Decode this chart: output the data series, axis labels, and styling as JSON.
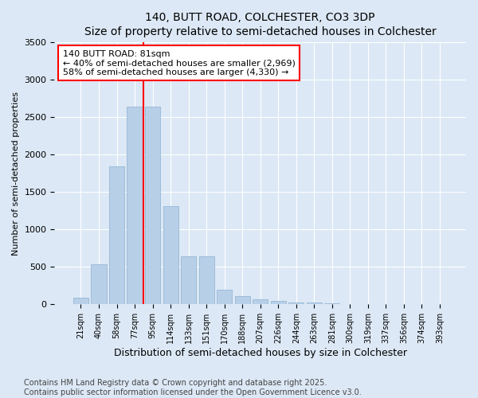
{
  "title": "140, BUTT ROAD, COLCHESTER, CO3 3DP",
  "subtitle": "Size of property relative to semi-detached houses in Colchester",
  "xlabel": "Distribution of semi-detached houses by size in Colchester",
  "ylabel": "Number of semi-detached properties",
  "categories": [
    "21sqm",
    "40sqm",
    "58sqm",
    "77sqm",
    "95sqm",
    "114sqm",
    "133sqm",
    "151sqm",
    "170sqm",
    "188sqm",
    "207sqm",
    "226sqm",
    "244sqm",
    "263sqm",
    "281sqm",
    "300sqm",
    "319sqm",
    "337sqm",
    "356sqm",
    "374sqm",
    "393sqm"
  ],
  "values": [
    90,
    530,
    1840,
    2640,
    2640,
    1310,
    640,
    640,
    200,
    110,
    70,
    50,
    30,
    20,
    10,
    8,
    5,
    3,
    2,
    1,
    1
  ],
  "bar_color": "#b8cfe8",
  "bar_edge_color": "#8ab0d0",
  "vline_color": "red",
  "vline_x_index": 3.5,
  "annotation_text": "140 BUTT ROAD: 81sqm\n← 40% of semi-detached houses are smaller (2,969)\n58% of semi-detached houses are larger (4,330) →",
  "annotation_box_color": "white",
  "annotation_edge_color": "red",
  "ylim": [
    0,
    3500
  ],
  "yticks": [
    0,
    500,
    1000,
    1500,
    2000,
    2500,
    3000,
    3500
  ],
  "footer": "Contains HM Land Registry data © Crown copyright and database right 2025.\nContains public sector information licensed under the Open Government Licence v3.0.",
  "bg_color": "#dce8f5",
  "plot_bg_color": "#dce8f5",
  "title_fontsize": 10,
  "label_fontsize": 8,
  "tick_fontsize": 7,
  "footer_fontsize": 7
}
